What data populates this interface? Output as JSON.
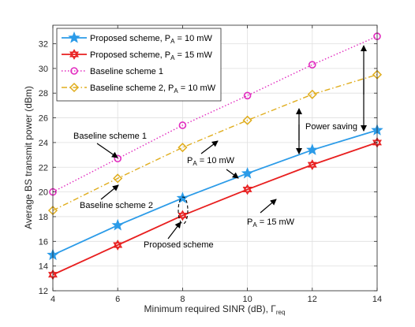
{
  "chart_data": {
    "type": "line",
    "xlabel": "Minimum required SINR (dB), Γ",
    "xlabel_sub": "req",
    "ylabel": "Average BS transmit power (dBm)",
    "xlim": [
      4,
      14
    ],
    "ylim": [
      12,
      33.5
    ],
    "xticks": [
      4,
      6,
      8,
      10,
      12,
      14
    ],
    "yticks": [
      12,
      14,
      16,
      18,
      20,
      22,
      24,
      26,
      28,
      30,
      32
    ],
    "grid": true,
    "legend_position": "top-left",
    "x": [
      4,
      6,
      8,
      10,
      12,
      14
    ],
    "series": [
      {
        "name": "Proposed scheme, P",
        "name_sub": "A",
        "name_suffix": " = 10 mW",
        "values": [
          14.9,
          17.3,
          19.5,
          21.5,
          23.4,
          25.0
        ],
        "color": "#2b9be8",
        "line": "solid",
        "marker": "star"
      },
      {
        "name": "Proposed scheme, P",
        "name_sub": "A",
        "name_suffix": " = 15 mW",
        "values": [
          13.3,
          15.7,
          18.1,
          20.2,
          22.2,
          24.0
        ],
        "color": "#e81f1f",
        "line": "solid",
        "marker": "hexagram"
      },
      {
        "name": "Baseline scheme 1",
        "name_sub": "",
        "name_suffix": "",
        "values": [
          20.0,
          22.7,
          25.4,
          27.8,
          30.3,
          32.6
        ],
        "color": "#e22bbf",
        "line": "dotted",
        "marker": "circle"
      },
      {
        "name": "Baseline scheme 2, P",
        "name_sub": "A",
        "name_suffix": " = 10 mW",
        "values": [
          18.5,
          21.1,
          23.6,
          25.8,
          27.9,
          29.5
        ],
        "color": "#e0ad1d",
        "line": "dashdot",
        "marker": "diamond"
      }
    ],
    "annotations": {
      "baseline1": "Baseline scheme 1",
      "baseline2": "Baseline scheme 2",
      "proposed": "Proposed scheme",
      "power_saving": "Power saving",
      "pa10_main": "P",
      "pa10_sub": "A",
      "pa10_suffix": " = 10 mW",
      "pa15_main": "P",
      "pa15_sub": "A",
      "pa15_suffix": " = 15 mW"
    }
  }
}
